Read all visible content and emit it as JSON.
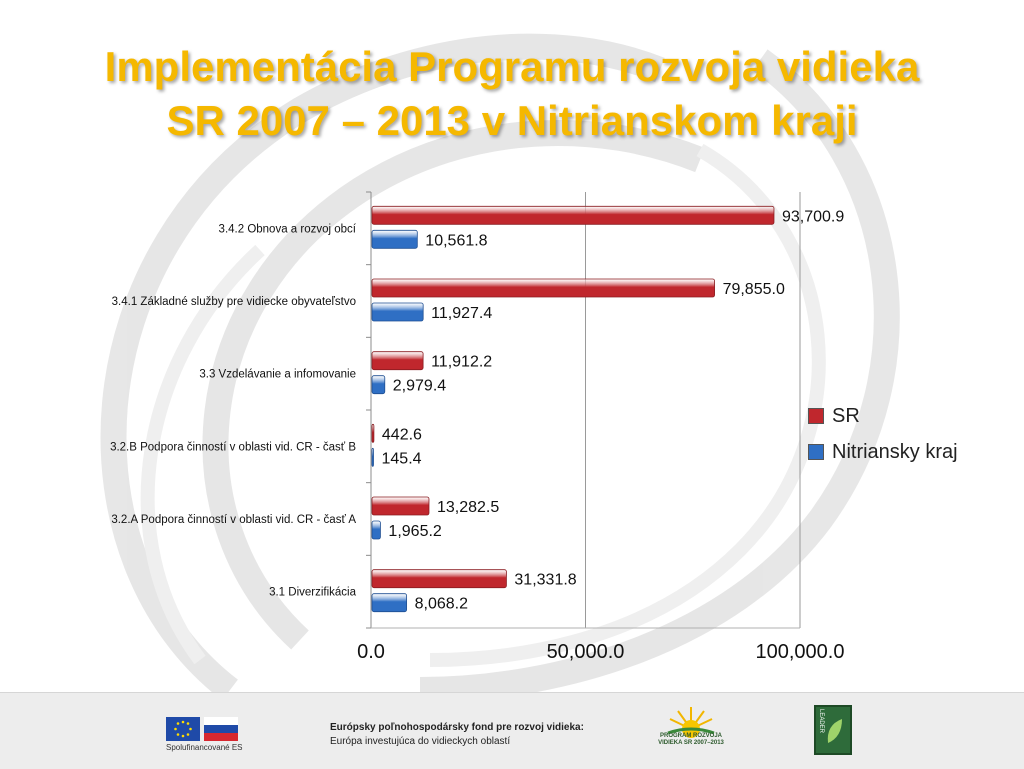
{
  "slide": {
    "title_line1": "Implementácia Programu rozvoja vidieka",
    "title_line2": "SR 2007 – 2013 v Nitrianskom kraji",
    "title_color": "#f5b800"
  },
  "chart_data": {
    "type": "bar",
    "orientation": "horizontal",
    "categories": [
      "3.4.2 Obnova a rozvoj obcí",
      "3.4.1 Základné služby pre vidiecke obyvateľstvo",
      "3.3 Vzdelávanie a infomovanie",
      "3.2.B Podpora činností v oblasti vid. CR - časť B",
      "3.2.A Podpora činností v oblasti vid. CR - časť A",
      "3.1 Diverzifikácia"
    ],
    "series": [
      {
        "name": "SR",
        "color": "#c0272d",
        "values": [
          93700.9,
          79855.0,
          11912.2,
          442.6,
          13282.5,
          31331.8
        ],
        "labels": [
          "93,700.9",
          "79,855.0",
          "11,912.2",
          "442.6",
          "13,282.5",
          "31,331.8"
        ]
      },
      {
        "name": "Nitriansky kraj",
        "color": "#2f6fc4",
        "values": [
          10561.8,
          11927.4,
          2979.4,
          145.4,
          1965.2,
          8068.2
        ],
        "labels": [
          "10,561.8",
          "11,927.4",
          "2,979.4",
          "145.4",
          "1,965.2",
          "8,068.2"
        ]
      }
    ],
    "xlim": [
      0,
      100000
    ],
    "ticks": [
      {
        "value": 0,
        "label": "0.0"
      },
      {
        "value": 50000,
        "label": "50,000.0"
      },
      {
        "value": 100000,
        "label": "100,000.0"
      }
    ],
    "grid": "vertical",
    "legend_position": "right",
    "legend": [
      {
        "label": "SR",
        "color": "#c0272d"
      },
      {
        "label": "Nitriansky kraj",
        "color": "#2f6fc4"
      }
    ]
  },
  "footer": {
    "cofinanced": "Spolufinancované ES",
    "fund_line1": "Európsky poľnohospodársky fond pre rozvoj vidieka:",
    "fund_line2": "Európa investujúca do vidieckych oblastí",
    "program_logo_text": "PROGRAM ROZVOJA VIDIEKA SR 2007–2013",
    "leader_logo_text": "LEADER"
  }
}
